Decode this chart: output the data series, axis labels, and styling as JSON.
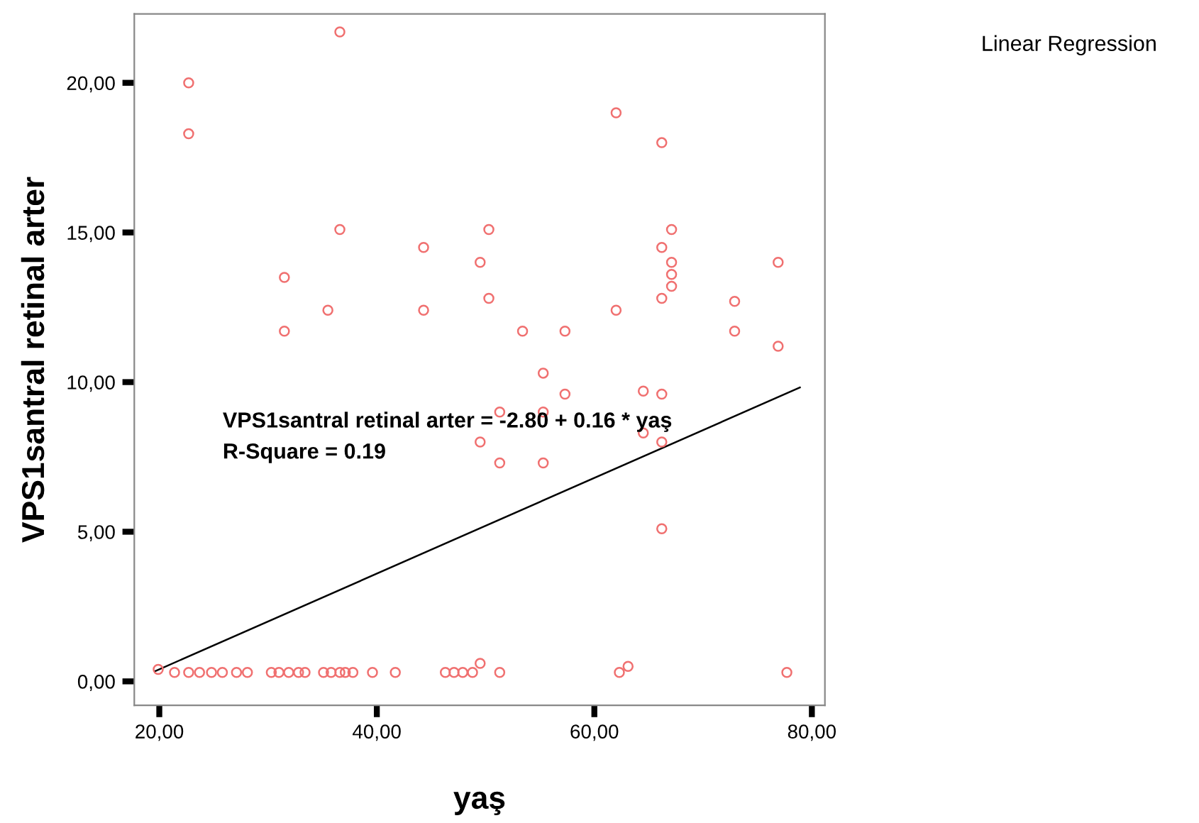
{
  "chart_data": {
    "type": "scatter",
    "title": "Linear Regression",
    "xlabel": "yaş",
    "ylabel": "VPS1santral retinal arter",
    "annotations": [
      "VPS1santral retinal arter = -2.80 + 0.16 * yaş",
      "R-Square = 0.19"
    ],
    "xlim": [
      17.7,
      81.2
    ],
    "ylim": [
      -0.8,
      22.3
    ],
    "xticks": [
      {
        "value": 20,
        "label": "20,00"
      },
      {
        "value": 40,
        "label": "40,00"
      },
      {
        "value": 60,
        "label": "60,00"
      },
      {
        "value": 80,
        "label": "80,00"
      }
    ],
    "yticks": [
      {
        "value": 0,
        "label": "0,00"
      },
      {
        "value": 5,
        "label": "5,00"
      },
      {
        "value": 10,
        "label": "10,00"
      },
      {
        "value": 15,
        "label": "15,00"
      },
      {
        "value": 20,
        "label": "20,00"
      }
    ],
    "grid": false,
    "legend": false,
    "series": [
      {
        "marker": "circle",
        "color": "#f07070",
        "x": [
          22.7,
          22.7,
          36.6,
          36.6,
          31.5,
          31.5,
          35.5,
          44.3,
          44.3,
          49.5,
          50.3,
          50.3,
          53.4,
          57.3,
          62,
          66.2,
          62,
          67.1,
          66.2,
          67.1,
          67.1,
          67.1,
          66.2,
          72.9,
          72.9,
          76.9,
          76.9,
          55.3,
          57.3,
          51.3,
          55.3,
          64.5,
          66.2,
          49.5,
          51.3,
          55.3,
          64.5,
          66.2,
          66.2,
          19.9,
          21.4,
          22.7,
          23.7,
          24.8,
          25.8,
          27.1,
          28.1,
          30.3,
          31,
          31.9,
          32.8,
          33.4,
          35.1,
          35.8,
          36.6,
          37.1,
          37.8,
          39.6,
          41.7,
          46.3,
          47.1,
          47.9,
          48.8,
          49.5,
          51.3,
          62.3,
          63.1,
          77.7
        ],
        "values": [
          20.0,
          18.3,
          21.7,
          15.1,
          13.5,
          11.7,
          12.4,
          14.5,
          12.4,
          14.0,
          15.1,
          12.8,
          11.7,
          11.7,
          19.0,
          18.0,
          12.4,
          15.1,
          14.5,
          14.0,
          13.6,
          13.2,
          12.8,
          12.7,
          11.7,
          14.0,
          11.2,
          10.3,
          9.6,
          9.0,
          9.0,
          9.7,
          9.6,
          8.0,
          7.3,
          7.3,
          8.3,
          8.0,
          5.1,
          0.4,
          0.3,
          0.3,
          0.3,
          0.3,
          0.3,
          0.3,
          0.3,
          0.3,
          0.3,
          0.3,
          0.3,
          0.3,
          0.3,
          0.3,
          0.3,
          0.3,
          0.3,
          0.3,
          0.3,
          0.3,
          0.3,
          0.3,
          0.3,
          0.6,
          0.3,
          0.3,
          0.5,
          0.3
        ]
      },
      {
        "type": "line",
        "marker": "none",
        "color": "#000000",
        "x": [
          19.6,
          78.9
        ],
        "values": [
          0.34,
          9.82
        ]
      }
    ]
  }
}
